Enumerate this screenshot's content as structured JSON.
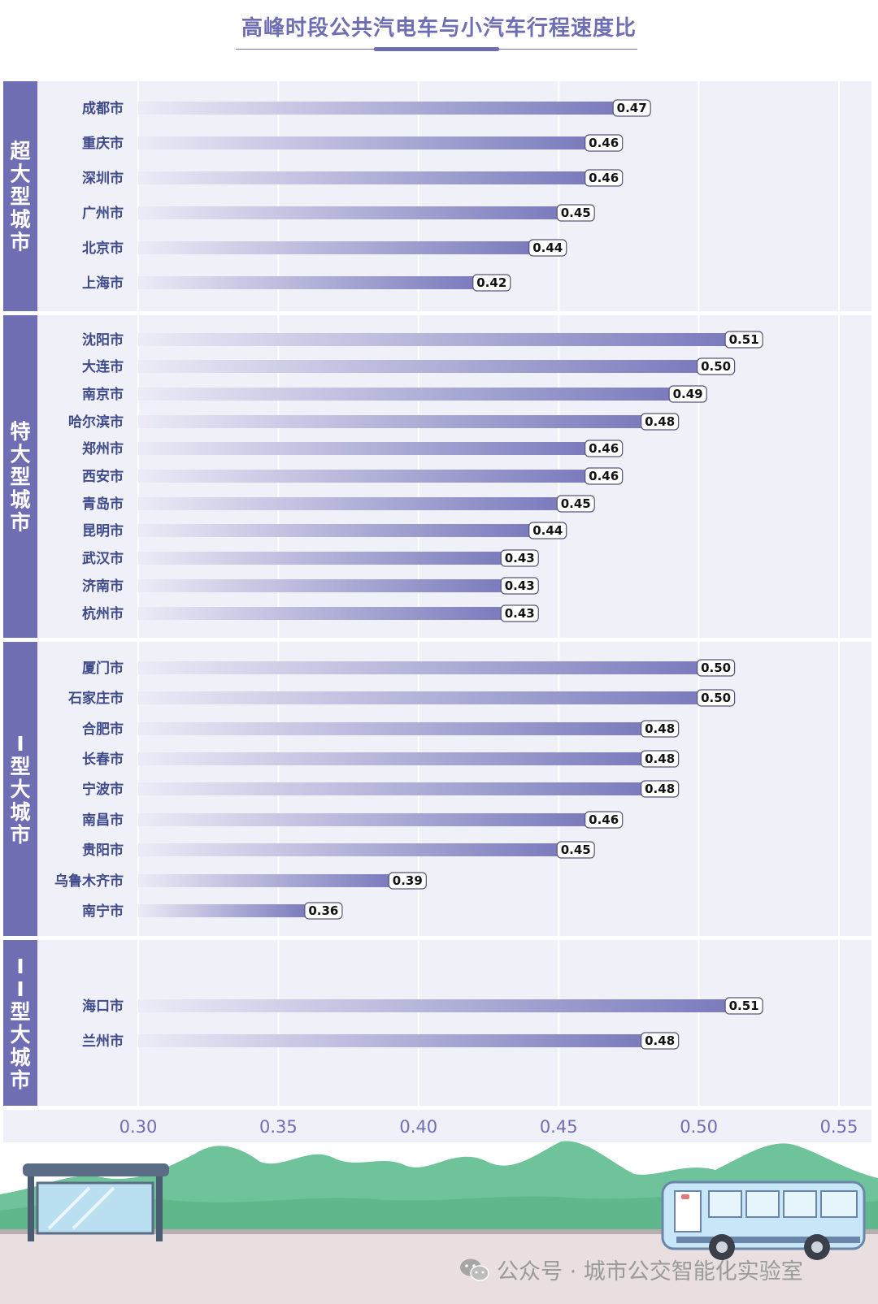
{
  "title": "高峰时段公共汽电车与小汽车行程速度比",
  "colors": {
    "accent": "#6f6eb3",
    "bar_start": "#ecebf6",
    "bar_end": "#7b7bbd",
    "panel_bg": "#f0f0f8",
    "tick_text": "#6f6eb3",
    "city_text": "#3e4a8a"
  },
  "chart_data": {
    "type": "bar",
    "orientation": "horizontal",
    "xlim": [
      0.3,
      0.55
    ],
    "xticks": [
      "0.30",
      "0.35",
      "0.40",
      "0.45",
      "0.50",
      "0.55"
    ],
    "grid": true,
    "groups": [
      {
        "name": "超大型城市",
        "categories": [
          "成都市",
          "重庆市",
          "深圳市",
          "广州市",
          "北京市",
          "上海市"
        ],
        "values": [
          0.47,
          0.46,
          0.46,
          0.45,
          0.44,
          0.42
        ]
      },
      {
        "name": "特大型城市",
        "categories": [
          "沈阳市",
          "大连市",
          "南京市",
          "哈尔滨市",
          "郑州市",
          "西安市",
          "青岛市",
          "昆明市",
          "武汉市",
          "济南市",
          "杭州市"
        ],
        "values": [
          0.51,
          0.5,
          0.49,
          0.48,
          0.46,
          0.46,
          0.45,
          0.44,
          0.43,
          0.43,
          0.43
        ]
      },
      {
        "name": "I型大城市",
        "categories": [
          "厦门市",
          "石家庄市",
          "合肥市",
          "长春市",
          "宁波市",
          "南昌市",
          "贵阳市",
          "乌鲁木齐市",
          "南宁市"
        ],
        "values": [
          0.5,
          0.5,
          0.48,
          0.48,
          0.48,
          0.46,
          0.45,
          0.39,
          0.36
        ]
      },
      {
        "name": "II型大城市",
        "categories": [
          "海口市",
          "兰州市"
        ],
        "values": [
          0.51,
          0.48
        ]
      }
    ]
  },
  "watermark": "公众号 · 城市公交智能化实验室",
  "watermark_icon": "wechat-icon",
  "scene": {
    "left_icon": "bus-stop-icon",
    "right_icon": "bus-icon",
    "background_icon": "hills-icon"
  }
}
